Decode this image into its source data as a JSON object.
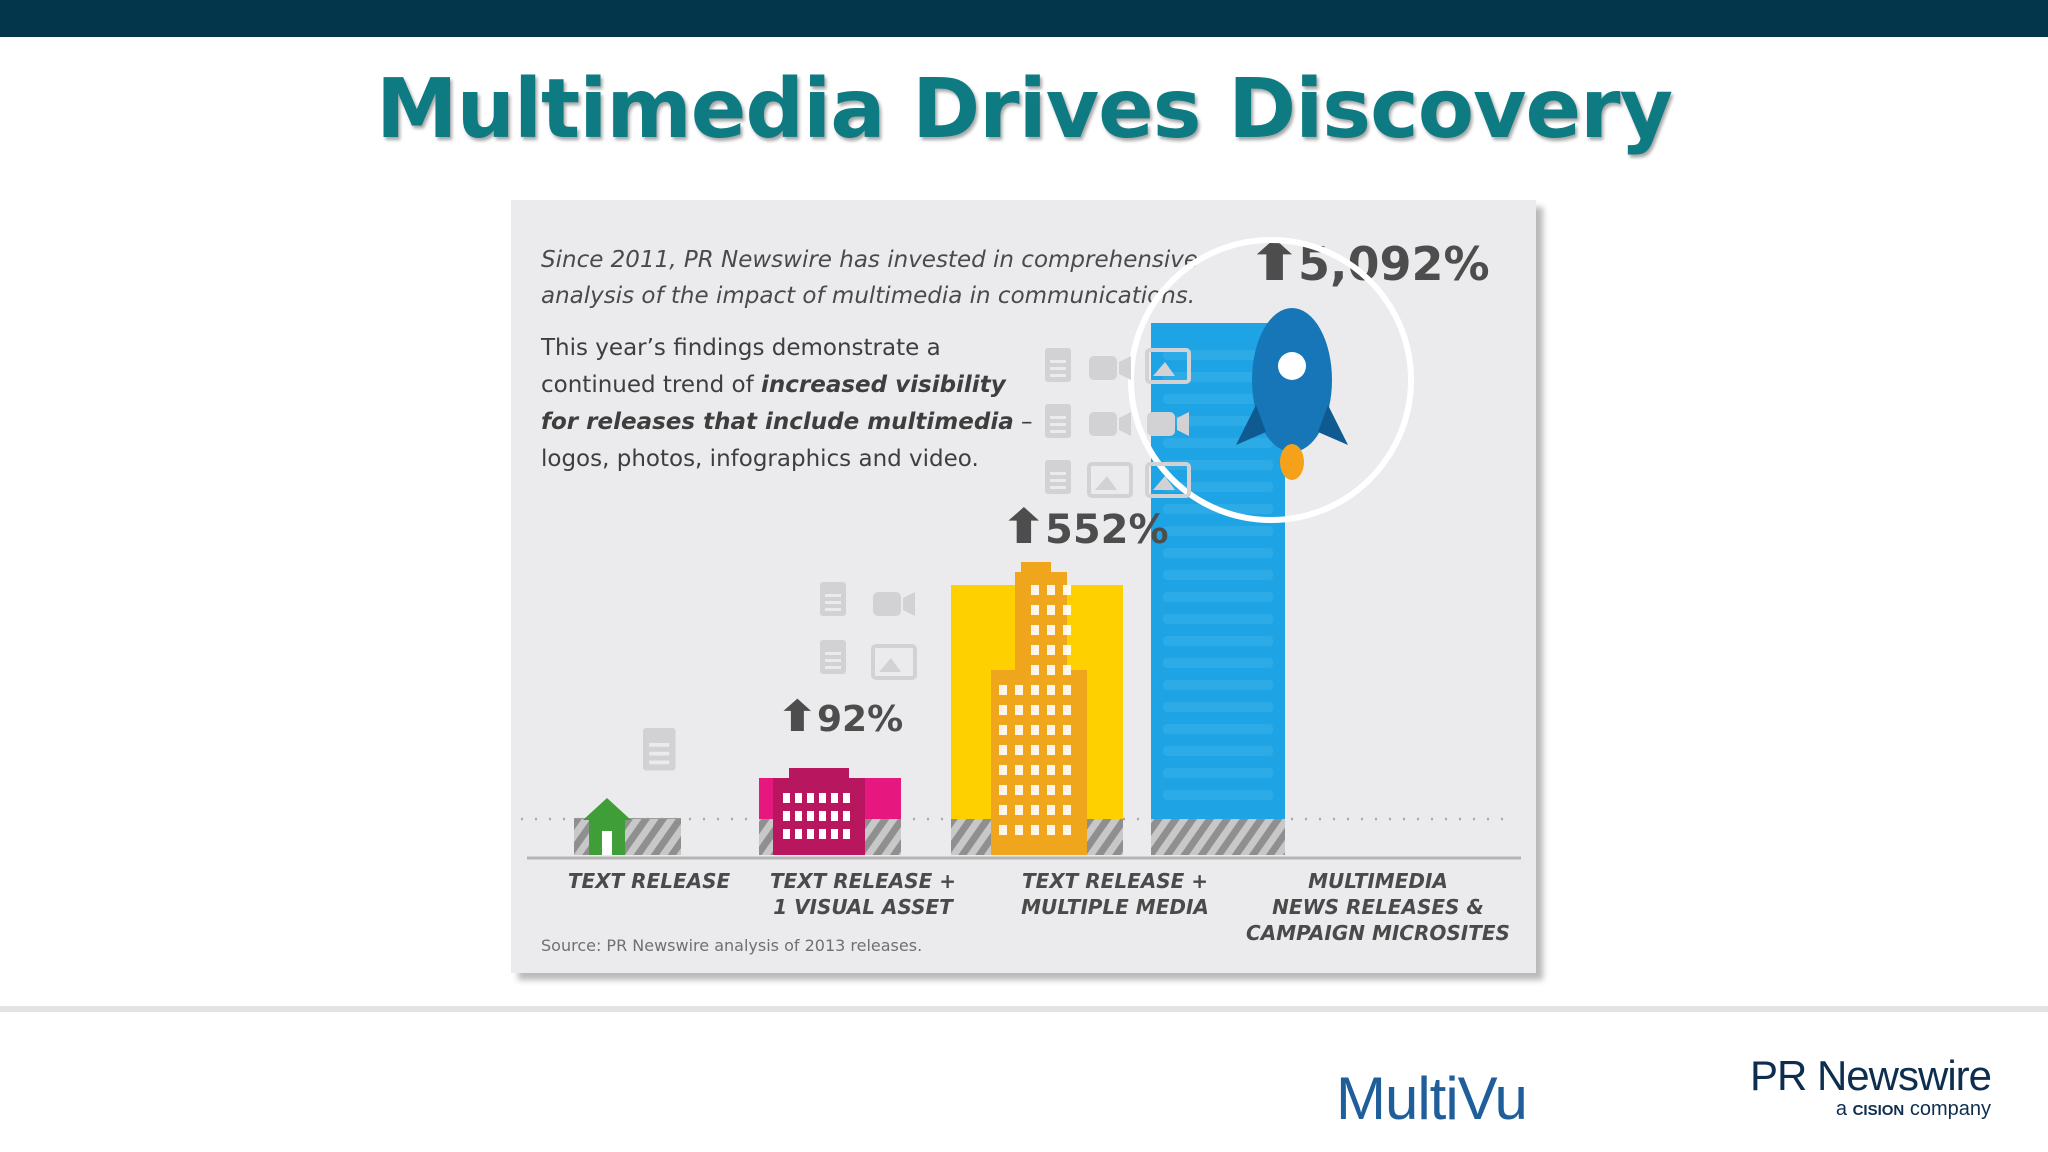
{
  "slide": {
    "title": "Multimedia Drives Discovery"
  },
  "panel": {
    "intro": "Since 2011, PR Newswire has invested in comprehensive analysis of the impact of multimedia in communications.",
    "finding_pre": "This year’s findings demonstrate a continued trend of ",
    "finding_bold": "increased visibility for releases that include multimedia",
    "finding_post": " – logos, photos, infographics and video.",
    "source": "Source: PR Newswire analysis of 2013 releases."
  },
  "chart_data": {
    "type": "bar",
    "categories": [
      [
        "TEXT RELEASE"
      ],
      [
        "TEXT RELEASE +",
        "1 VISUAL ASSET"
      ],
      [
        "TEXT RELEASE +",
        "MULTIPLE MEDIA"
      ],
      [
        "MULTIMEDIA",
        "NEWS RELEASES &",
        "CAMPAIGN MICROSITES"
      ]
    ],
    "value_labels": [
      "",
      "92%",
      "552%",
      "5,092%"
    ],
    "colors": [
      "#9b9b9b",
      "#e6177f",
      "#ffd000",
      "#1ea3e4"
    ],
    "building_colors": [
      "#3f9e38",
      "#b8165f",
      "#f0a61c",
      "#1ea3e4"
    ],
    "icons": [
      "document-icon",
      "rocket-icon"
    ]
  },
  "footer": {
    "multivu_logo": "MultiVu",
    "prn_logo": "PR Newswire",
    "prn_tagline_pre": "a",
    "prn_tagline_brand": "CISION",
    "prn_tagline_post": "company"
  }
}
